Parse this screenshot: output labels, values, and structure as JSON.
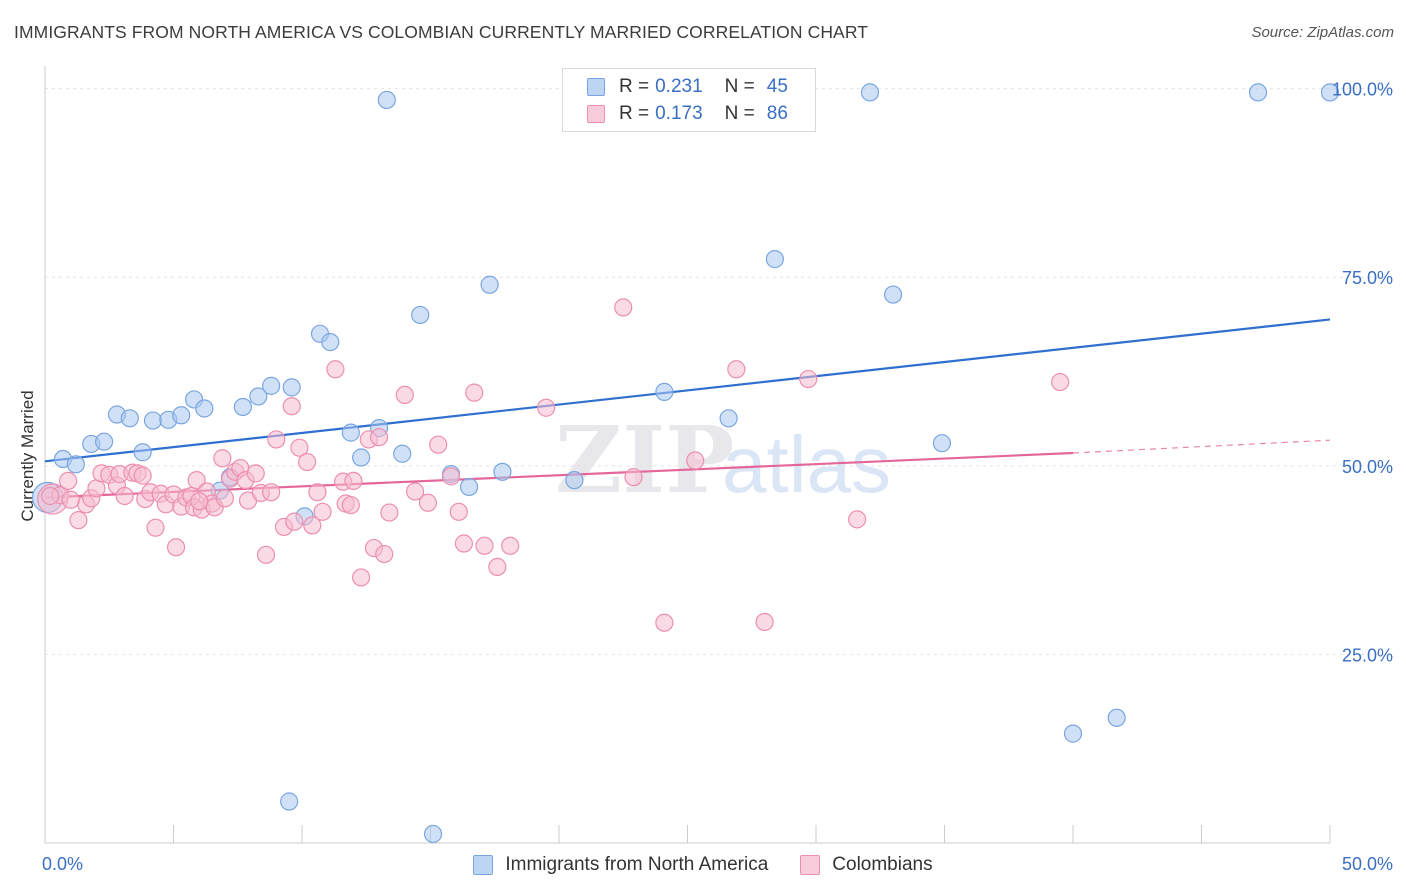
{
  "header": {
    "title": "IMMIGRANTS FROM NORTH AMERICA VS COLOMBIAN CURRENTLY MARRIED CORRELATION CHART",
    "source": "Source: ZipAtlas.com"
  },
  "watermark": {
    "zip": "ZIP",
    "atlas": "atlas"
  },
  "chart_data": {
    "type": "scatter",
    "title": "IMMIGRANTS FROM NORTH AMERICA VS COLOMBIAN CURRENTLY MARRIED CORRELATION CHART",
    "xlabel": "",
    "ylabel": "Currently Married",
    "xlim": [
      0,
      50
    ],
    "ylim": [
      0,
      103
    ],
    "x_tick_labels": [
      "0.0%",
      "50.0%"
    ],
    "y_ticks": [
      25,
      50,
      75,
      100
    ],
    "y_tick_labels": [
      "25.0%",
      "50.0%",
      "75.0%",
      "100.0%"
    ],
    "grid": true,
    "legend_position": "top-center",
    "series": [
      {
        "name": "Immigrants from North America",
        "color": "#a9c8f0",
        "stroke": "#7aa6e0",
        "line_color": "#2f6fd0",
        "R": "0.231",
        "N": "45",
        "trend": {
          "x": [
            0,
            50
          ],
          "y": [
            50.6,
            69.4
          ]
        },
        "points": [
          {
            "x": 0.1,
            "y": 45.8,
            "big": true
          },
          {
            "x": 0.7,
            "y": 50.9
          },
          {
            "x": 1.2,
            "y": 50.2
          },
          {
            "x": 1.8,
            "y": 52.9
          },
          {
            "x": 2.3,
            "y": 53.2
          },
          {
            "x": 2.8,
            "y": 56.8
          },
          {
            "x": 3.3,
            "y": 56.3
          },
          {
            "x": 3.8,
            "y": 51.8
          },
          {
            "x": 4.2,
            "y": 56.0
          },
          {
            "x": 4.8,
            "y": 56.1
          },
          {
            "x": 5.3,
            "y": 56.7
          },
          {
            "x": 5.8,
            "y": 58.8
          },
          {
            "x": 6.2,
            "y": 57.6
          },
          {
            "x": 6.8,
            "y": 46.7
          },
          {
            "x": 7.2,
            "y": 48.5
          },
          {
            "x": 7.7,
            "y": 57.8
          },
          {
            "x": 8.3,
            "y": 59.2
          },
          {
            "x": 8.8,
            "y": 60.6
          },
          {
            "x": 9.6,
            "y": 60.4
          },
          {
            "x": 10.1,
            "y": 43.3
          },
          {
            "x": 10.7,
            "y": 67.5
          },
          {
            "x": 11.1,
            "y": 66.4
          },
          {
            "x": 11.9,
            "y": 54.4
          },
          {
            "x": 12.3,
            "y": 51.1
          },
          {
            "x": 13.0,
            "y": 55.0
          },
          {
            "x": 13.3,
            "y": 98.5
          },
          {
            "x": 13.9,
            "y": 51.6
          },
          {
            "x": 14.6,
            "y": 70.0
          },
          {
            "x": 15.8,
            "y": 48.9
          },
          {
            "x": 16.5,
            "y": 47.2
          },
          {
            "x": 17.3,
            "y": 74.0
          },
          {
            "x": 17.8,
            "y": 49.2
          },
          {
            "x": 20.6,
            "y": 48.1
          },
          {
            "x": 24.1,
            "y": 59.8
          },
          {
            "x": 26.6,
            "y": 56.3
          },
          {
            "x": 28.4,
            "y": 77.4
          },
          {
            "x": 32.1,
            "y": 99.5
          },
          {
            "x": 33.0,
            "y": 72.7
          },
          {
            "x": 34.9,
            "y": 53.0
          },
          {
            "x": 40.0,
            "y": 14.5
          },
          {
            "x": 41.7,
            "y": 16.6
          },
          {
            "x": 47.2,
            "y": 99.5
          },
          {
            "x": 50.0,
            "y": 99.5
          },
          {
            "x": 9.5,
            "y": 5.5
          },
          {
            "x": 15.1,
            "y": 1.2
          }
        ]
      },
      {
        "name": "Colombians",
        "color": "#f6bcd0",
        "stroke": "#ec8fb0",
        "line_color": "#e4669a",
        "R": "0.173",
        "N": "86",
        "trend": {
          "x": [
            0,
            40
          ],
          "y": [
            45.8,
            51.7
          ],
          "dash": {
            "x": [
              40,
              50
            ],
            "y": [
              51.7,
              53.4
            ]
          }
        },
        "points": [
          {
            "x": 0.3,
            "y": 45.6,
            "big": true
          },
          {
            "x": 0.6,
            "y": 46.1
          },
          {
            "x": 0.9,
            "y": 48.0
          },
          {
            "x": 1.3,
            "y": 42.8
          },
          {
            "x": 1.6,
            "y": 44.9
          },
          {
            "x": 1.8,
            "y": 45.7
          },
          {
            "x": 2.0,
            "y": 47.0
          },
          {
            "x": 2.2,
            "y": 49.0
          },
          {
            "x": 2.5,
            "y": 48.8
          },
          {
            "x": 2.8,
            "y": 47.4
          },
          {
            "x": 2.9,
            "y": 48.9
          },
          {
            "x": 3.1,
            "y": 46.0
          },
          {
            "x": 3.4,
            "y": 49.1
          },
          {
            "x": 3.6,
            "y": 49.0
          },
          {
            "x": 3.8,
            "y": 48.7
          },
          {
            "x": 3.9,
            "y": 45.6
          },
          {
            "x": 4.1,
            "y": 46.5
          },
          {
            "x": 4.3,
            "y": 41.8
          },
          {
            "x": 4.5,
            "y": 46.3
          },
          {
            "x": 4.7,
            "y": 44.9
          },
          {
            "x": 5.0,
            "y": 46.2
          },
          {
            "x": 5.1,
            "y": 39.2
          },
          {
            "x": 5.3,
            "y": 44.6
          },
          {
            "x": 5.5,
            "y": 45.8
          },
          {
            "x": 5.7,
            "y": 46.0
          },
          {
            "x": 5.8,
            "y": 44.5
          },
          {
            "x": 5.9,
            "y": 48.1
          },
          {
            "x": 6.1,
            "y": 44.2
          },
          {
            "x": 6.3,
            "y": 46.6
          },
          {
            "x": 6.5,
            "y": 45.0
          },
          {
            "x": 6.6,
            "y": 44.5
          },
          {
            "x": 6.9,
            "y": 51.0
          },
          {
            "x": 7.0,
            "y": 45.7
          },
          {
            "x": 7.2,
            "y": 48.3
          },
          {
            "x": 7.4,
            "y": 49.2
          },
          {
            "x": 7.6,
            "y": 49.7
          },
          {
            "x": 7.8,
            "y": 48.1
          },
          {
            "x": 7.9,
            "y": 45.4
          },
          {
            "x": 8.2,
            "y": 49.0
          },
          {
            "x": 8.4,
            "y": 46.4
          },
          {
            "x": 8.6,
            "y": 38.2
          },
          {
            "x": 8.8,
            "y": 46.5
          },
          {
            "x": 9.0,
            "y": 53.5
          },
          {
            "x": 9.3,
            "y": 41.9
          },
          {
            "x": 9.6,
            "y": 57.9
          },
          {
            "x": 9.7,
            "y": 42.6
          },
          {
            "x": 9.9,
            "y": 52.4
          },
          {
            "x": 10.2,
            "y": 50.5
          },
          {
            "x": 10.4,
            "y": 42.1
          },
          {
            "x": 10.6,
            "y": 46.5
          },
          {
            "x": 10.8,
            "y": 43.9
          },
          {
            "x": 11.3,
            "y": 62.8
          },
          {
            "x": 11.6,
            "y": 47.9
          },
          {
            "x": 11.7,
            "y": 45.0
          },
          {
            "x": 12.0,
            "y": 48.0
          },
          {
            "x": 12.3,
            "y": 35.2
          },
          {
            "x": 12.6,
            "y": 53.5
          },
          {
            "x": 12.8,
            "y": 39.1
          },
          {
            "x": 13.0,
            "y": 53.8
          },
          {
            "x": 13.2,
            "y": 38.3
          },
          {
            "x": 13.4,
            "y": 43.8
          },
          {
            "x": 14.0,
            "y": 59.4
          },
          {
            "x": 14.4,
            "y": 46.6
          },
          {
            "x": 14.9,
            "y": 45.1
          },
          {
            "x": 15.3,
            "y": 52.8
          },
          {
            "x": 15.8,
            "y": 48.6
          },
          {
            "x": 16.1,
            "y": 43.9
          },
          {
            "x": 16.3,
            "y": 39.7
          },
          {
            "x": 16.7,
            "y": 59.7
          },
          {
            "x": 17.1,
            "y": 39.4
          },
          {
            "x": 17.6,
            "y": 36.6
          },
          {
            "x": 18.1,
            "y": 39.4
          },
          {
            "x": 19.5,
            "y": 57.7
          },
          {
            "x": 22.5,
            "y": 71.0
          },
          {
            "x": 22.9,
            "y": 48.5
          },
          {
            "x": 24.1,
            "y": 29.2
          },
          {
            "x": 25.3,
            "y": 50.7
          },
          {
            "x": 26.9,
            "y": 62.8
          },
          {
            "x": 28.0,
            "y": 29.3
          },
          {
            "x": 29.7,
            "y": 61.5
          },
          {
            "x": 31.6,
            "y": 42.9
          },
          {
            "x": 39.5,
            "y": 61.1
          },
          {
            "x": 0.2,
            "y": 46.0
          },
          {
            "x": 1.0,
            "y": 45.5
          },
          {
            "x": 6.0,
            "y": 45.3
          },
          {
            "x": 11.9,
            "y": 44.8
          }
        ]
      }
    ]
  }
}
